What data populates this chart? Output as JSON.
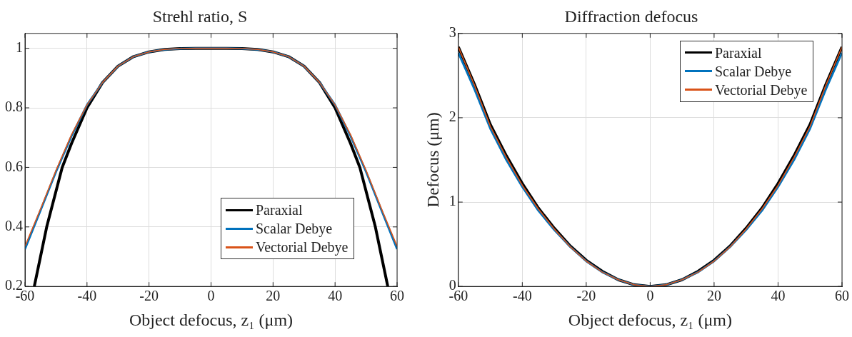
{
  "chart_data": [
    {
      "type": "line",
      "title": "Strehl ratio, S",
      "xlabel": "Object defocus, z₁ (μm)",
      "xlim": [
        -60,
        60
      ],
      "xticks": [
        -60,
        -40,
        -20,
        0,
        20,
        40,
        60
      ],
      "ylim": [
        0.2,
        1.05
      ],
      "yticks": [
        0.2,
        0.4,
        0.6,
        0.8,
        1
      ],
      "grid": true,
      "legend": "bottom right",
      "series": [
        {
          "name": "Paraxial",
          "color": "#000000",
          "x": [
            -57,
            -55,
            -53,
            -50,
            -48,
            -45,
            -40,
            -35,
            -30,
            -25,
            -20,
            -15,
            -10,
            -5,
            0,
            5,
            10,
            15,
            20,
            25,
            30,
            35,
            40,
            45,
            48,
            50,
            53,
            55,
            57
          ],
          "values": [
            0.2,
            0.3,
            0.4,
            0.52,
            0.6,
            0.68,
            0.8,
            0.885,
            0.94,
            0.972,
            0.988,
            0.996,
            0.999,
            1,
            1,
            1,
            0.999,
            0.996,
            0.988,
            0.972,
            0.94,
            0.885,
            0.8,
            0.68,
            0.6,
            0.52,
            0.4,
            0.3,
            0.2
          ]
        },
        {
          "name": "Scalar Debye",
          "color": "#0072bd",
          "x": [
            -60,
            -55,
            -50,
            -45,
            -40,
            -35,
            -30,
            -25,
            -20,
            -15,
            -10,
            -5,
            0,
            5,
            10,
            15,
            20,
            25,
            30,
            35,
            40,
            45,
            50,
            55,
            60
          ],
          "values": [
            0.325,
            0.455,
            0.585,
            0.705,
            0.81,
            0.885,
            0.94,
            0.972,
            0.988,
            0.996,
            0.999,
            1,
            1,
            1,
            0.999,
            0.996,
            0.988,
            0.972,
            0.94,
            0.885,
            0.81,
            0.705,
            0.585,
            0.455,
            0.325
          ]
        },
        {
          "name": "Vectorial Debye",
          "color": "#d95319",
          "x": [
            -60,
            -55,
            -50,
            -45,
            -40,
            -35,
            -30,
            -25,
            -20,
            -15,
            -10,
            -5,
            0,
            5,
            10,
            15,
            20,
            25,
            30,
            35,
            40,
            45,
            50,
            55,
            60
          ],
          "values": [
            0.335,
            0.46,
            0.59,
            0.71,
            0.81,
            0.885,
            0.94,
            0.972,
            0.988,
            0.996,
            0.999,
            1,
            1,
            1,
            0.999,
            0.996,
            0.988,
            0.972,
            0.94,
            0.885,
            0.81,
            0.71,
            0.59,
            0.46,
            0.335
          ]
        }
      ]
    },
    {
      "type": "line",
      "title": "Diffraction defocus",
      "xlabel": "Object defocus, z₁ (μm)",
      "ylabel": "Defocus (μm)",
      "xlim": [
        -60,
        60
      ],
      "xticks": [
        -60,
        -40,
        -20,
        0,
        20,
        40,
        60
      ],
      "ylim": [
        0,
        3
      ],
      "yticks": [
        0,
        1,
        2,
        3
      ],
      "grid": true,
      "legend": "top right",
      "series": [
        {
          "name": "Paraxial",
          "color": "#000000",
          "x": [
            -60,
            -55,
            -50,
            -45,
            -40,
            -35,
            -30,
            -25,
            -20,
            -15,
            -10,
            -5,
            0,
            5,
            10,
            15,
            20,
            25,
            30,
            35,
            40,
            45,
            50,
            55,
            60
          ],
          "values": [
            2.84,
            2.4,
            1.92,
            1.55,
            1.22,
            0.93,
            0.69,
            0.48,
            0.31,
            0.18,
            0.08,
            0.02,
            0,
            0.02,
            0.08,
            0.18,
            0.31,
            0.48,
            0.69,
            0.93,
            1.22,
            1.55,
            1.92,
            2.4,
            2.84
          ]
        },
        {
          "name": "Scalar Debye",
          "color": "#0072bd",
          "x": [
            -60,
            -55,
            -50,
            -45,
            -40,
            -35,
            -30,
            -25,
            -20,
            -15,
            -10,
            -5,
            0,
            5,
            10,
            15,
            20,
            25,
            30,
            35,
            40,
            45,
            50,
            55,
            60
          ],
          "values": [
            2.77,
            2.34,
            1.87,
            1.5,
            1.18,
            0.9,
            0.67,
            0.47,
            0.3,
            0.17,
            0.08,
            0.02,
            0,
            0.02,
            0.08,
            0.17,
            0.3,
            0.47,
            0.67,
            0.9,
            1.18,
            1.5,
            1.87,
            2.34,
            2.77
          ]
        },
        {
          "name": "Vectorial Debye",
          "color": "#d95319",
          "x": [
            -60,
            -55,
            -50,
            -45,
            -40,
            -35,
            -30,
            -25,
            -20,
            -15,
            -10,
            -5,
            0,
            5,
            10,
            15,
            20,
            25,
            30,
            35,
            40,
            45,
            50,
            55,
            60
          ],
          "values": [
            2.84,
            2.39,
            1.9,
            1.53,
            1.2,
            0.92,
            0.68,
            0.47,
            0.3,
            0.17,
            0.08,
            0.02,
            0,
            0.02,
            0.08,
            0.17,
            0.3,
            0.47,
            0.68,
            0.92,
            1.2,
            1.53,
            1.9,
            2.39,
            2.84
          ]
        }
      ]
    }
  ]
}
